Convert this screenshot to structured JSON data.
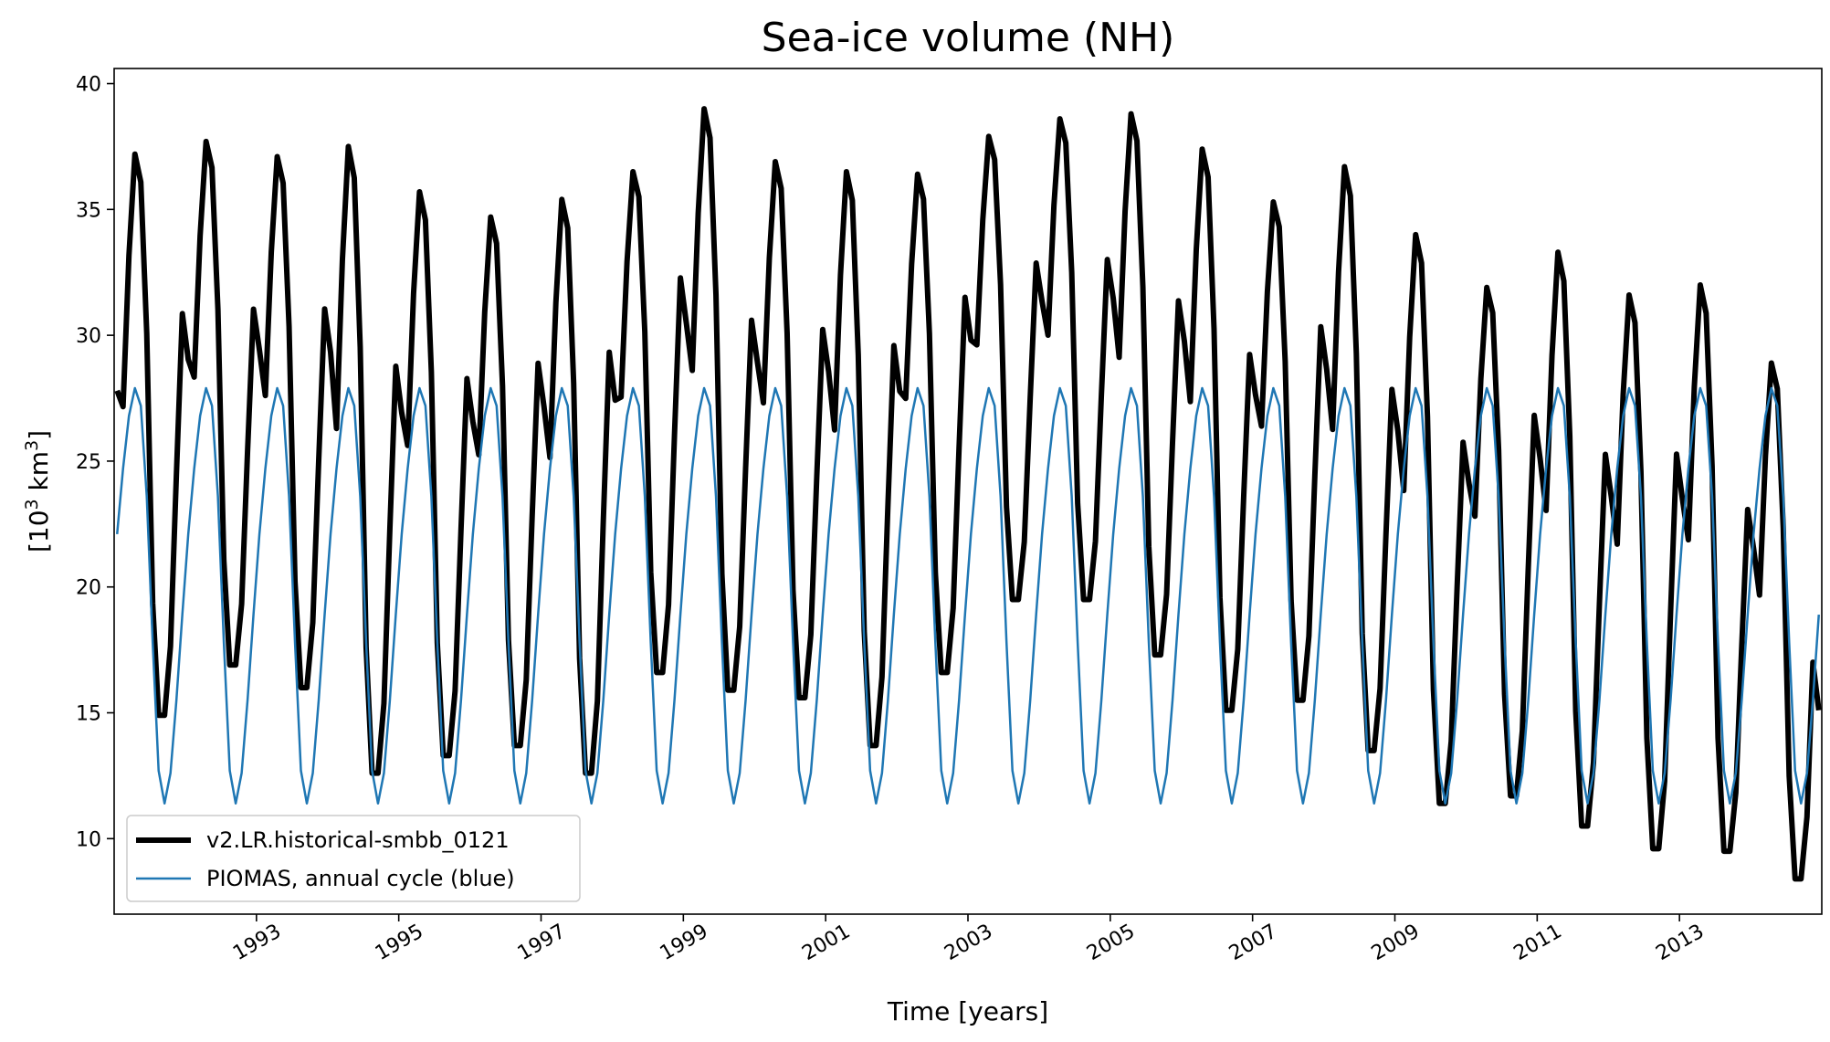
{
  "chart_data": {
    "type": "line",
    "title": "Sea-ice volume (NH)",
    "xlabel": "Time [years]",
    "ylabel_base": "[10",
    "ylabel_sup1": "3",
    "ylabel_mid": " km",
    "ylabel_sup2": "3",
    "ylabel_end": "]",
    "xlim": [
      1991,
      2015
    ],
    "ylim": [
      7,
      40.6
    ],
    "x_ticks": [
      1993,
      1995,
      1997,
      1999,
      2001,
      2003,
      2005,
      2007,
      2009,
      2011,
      2013
    ],
    "x_tick_labels": [
      "1993",
      "1995",
      "1997",
      "1999",
      "2001",
      "2003",
      "2005",
      "2007",
      "2009",
      "2011",
      "2013"
    ],
    "y_ticks": [
      10,
      15,
      20,
      25,
      30,
      35,
      40
    ],
    "y_tick_labels": [
      "10",
      "15",
      "20",
      "25",
      "30",
      "35",
      "40"
    ],
    "grid": false,
    "legend_position": "lower-left",
    "series": [
      {
        "name": "v2.LR.historical-smbb_0121",
        "color": "#000000",
        "annual_max": [
          37.2,
          37.7,
          37.1,
          37.5,
          35.7,
          34.7,
          35.4,
          36.5,
          39.0,
          36.9,
          36.5,
          36.4,
          37.9,
          38.6,
          38.8,
          37.4,
          35.3,
          36.7,
          34.0,
          31.9,
          33.3,
          31.6,
          32.0,
          28.9
        ],
        "annual_min": [
          14.9,
          16.9,
          16.0,
          12.6,
          13.3,
          13.7,
          12.6,
          16.6,
          15.9,
          15.6,
          13.7,
          16.6,
          19.5,
          19.5,
          17.3,
          15.1,
          15.5,
          13.5,
          11.4,
          11.7,
          10.5,
          9.6,
          9.5,
          8.4
        ],
        "start_value": 27.8,
        "end_value": 15.1
      },
      {
        "name": "PIOMAS, annual cycle (blue)",
        "color": "#1f77b4",
        "monthly_cycle": [
          22.1,
          24.7,
          26.8,
          27.9,
          27.2,
          23.6,
          17.8,
          12.7,
          11.4,
          12.6,
          15.5,
          18.9
        ]
      }
    ]
  }
}
